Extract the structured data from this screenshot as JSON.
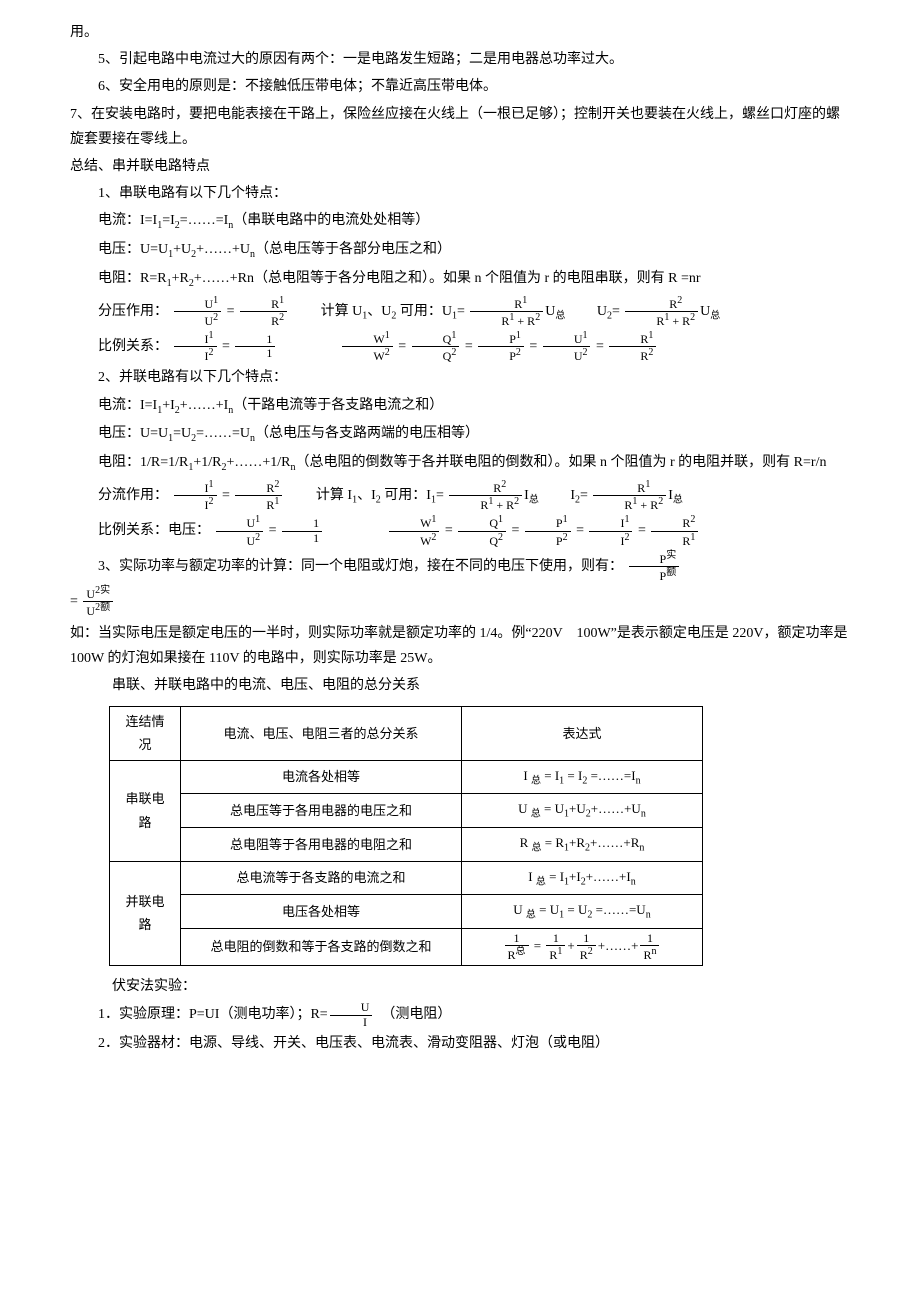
{
  "para": {
    "l1": "用。",
    "l2": "5、引起电路中电流过大的原因有两个：一是电路发生短路；二是用电器总功率过大。",
    "l3": "6、安全用电的原则是：不接触低压带电体；不靠近高压带电体。",
    "l4": "7、在安装电路时，要把电能表接在干路上，保险丝应接在火线上（一根已足够）；控制开关也要装在火线上，螺丝口灯座的螺旋套要接在零线上。",
    "l5": "总结、串并联电路特点",
    "l6": "1、串联电路有以下几个特点：",
    "l7_a": "电流：I=I",
    "l7_b": "=I",
    "l7_c": "=……=I",
    "l7_d": "（串联电路中的电流处处相等）",
    "l8_a": "电压：U=U",
    "l8_b": "+U",
    "l8_c": "+……+U",
    "l8_d": "（总电压等于各部分电压之和）",
    "l9_a": "电阻：R=R",
    "l9_b": "+R",
    "l9_c": "+……+Rn（总电阻等于各分电阻之和）。如果 n 个阻值为 r 的电阻串联，则有 R =nr",
    "l10_a": "分压作用：",
    "l10_b": "计算 U",
    "l10_c": "、U",
    "l10_d": " 可用：U",
    "l10_e": "U",
    "l10_f": "U",
    "l10_g": "U",
    "l11_a": "比例关系：",
    "l12": "2、并联电路有以下几个特点：",
    "l13_a": "电流：I=I",
    "l13_b": "+I",
    "l13_c": "+……+I",
    "l13_d": "（干路电流等于各支路电流之和）",
    "l14_a": "电压：U=U",
    "l14_b": "=U",
    "l14_c": "=……=U",
    "l14_d": "（总电压与各支路两端的电压相等）",
    "l15_a": "电阻：1/R=1/R",
    "l15_b": "+1/R",
    "l15_c": "+……+1/R",
    "l15_d": "（总电阻的倒数等于各并联电阻的倒数和）。如果 n 个阻值为 r 的电阻并联，则有 R=r/n",
    "l16_a": "分流作用：",
    "l16_b": "计算 I",
    "l16_c": "、I",
    "l16_d": " 可用：I",
    "l16_e": "I",
    "l16_f": "I",
    "l16_g": "I",
    "l17_a": "比例关系：电压：",
    "l18_a": "3、实际功率与额定功率的计算：同一个电阻或灯炮，接在不同的电压下使用，则有：",
    "l19": "如：当实际电压是额定电压的一半时，则实际功率就是额定功率的 1/4。例“220V　100W”是表示额定电压是 220V，额定功率是 100W 的灯泡如果接在 110V 的电路中，则实际功率是 25W。",
    "l20": "串联、并联电路中的电流、电压、电阻的总分关系",
    "l21": "伏安法实验：",
    "l22_a": "1．实验原理：P=UI（测电功率）；R=",
    "l22_b": "（测电阻）",
    "l23": "2．实验器材：电源、导线、开关、电压表、电流表、滑动变阻器、灯泡（或电阻）"
  },
  "sub": {
    "1": "1",
    "2": "2",
    "n": "n",
    "zong": "总",
    "shi": "实",
    "e": "额"
  },
  "sup": {
    "1": "1",
    "2": "2",
    "2shi": "2实",
    "2e": "2额",
    "n": "n",
    "zong": "总"
  },
  "frac": {
    "U1U2n": "U",
    "U1U2d": "U",
    "R1R2n": "R",
    "R1R2d": "R",
    "R1sumn": "R",
    "R1sumd": "R",
    "plus": " + ",
    "R2sumn": "R",
    "I1I2n": "I",
    "I1I2d": "I",
    "one": "1",
    "W1W2n": "W",
    "W1W2d": "W",
    "Q1Q2n": "Q",
    "Q1Q2d": "Q",
    "P1P2n": "P",
    "P1P2d": "P",
    "PsPen": "P",
    "PsPed": "P",
    "U2sU2en": "U",
    "U2sU2ed": "U",
    "UIn": "U",
    "UId": "I",
    "Rzongn": "R"
  },
  "eq": "=",
  "table": {
    "h1": "连结情况",
    "h2": "电流、电压、电阻三者的总分关系",
    "h3": "表达式",
    "s_label": "串联电路",
    "s_r1c2": "电流各处相等",
    "s_r1c3_a": "I ",
    "s_r1c3_b": " = I",
    "s_r1c3_c": " = I",
    "s_r1c3_d": " =……=I",
    "s_r2c2": "总电压等于各用电器的电压之和",
    "s_r2c3_a": "U ",
    "s_r2c3_b": " = U",
    "s_r2c3_c": "+U",
    "s_r2c3_d": "+……+U",
    "s_r3c2": "总电阻等于各用电器的电阻之和",
    "s_r3c3_a": "R ",
    "s_r3c3_b": " = R",
    "s_r3c3_c": "+R",
    "s_r3c3_d": "+……+R",
    "p_label": "并联电路",
    "p_r1c2": "总电流等于各支路的电流之和",
    "p_r1c3_a": "I ",
    "p_r1c3_b": " = I",
    "p_r1c3_c": "+I",
    "p_r1c3_d": "+……+I",
    "p_r2c2": "电压各处相等",
    "p_r2c3_a": "U ",
    "p_r2c3_b": " = U",
    "p_r2c3_c": " = U",
    "p_r2c3_d": " =……=U",
    "p_r3c2": "总电阻的倒数和等于各支路的倒数之和",
    "p_r3c3_mid": "+……+"
  }
}
